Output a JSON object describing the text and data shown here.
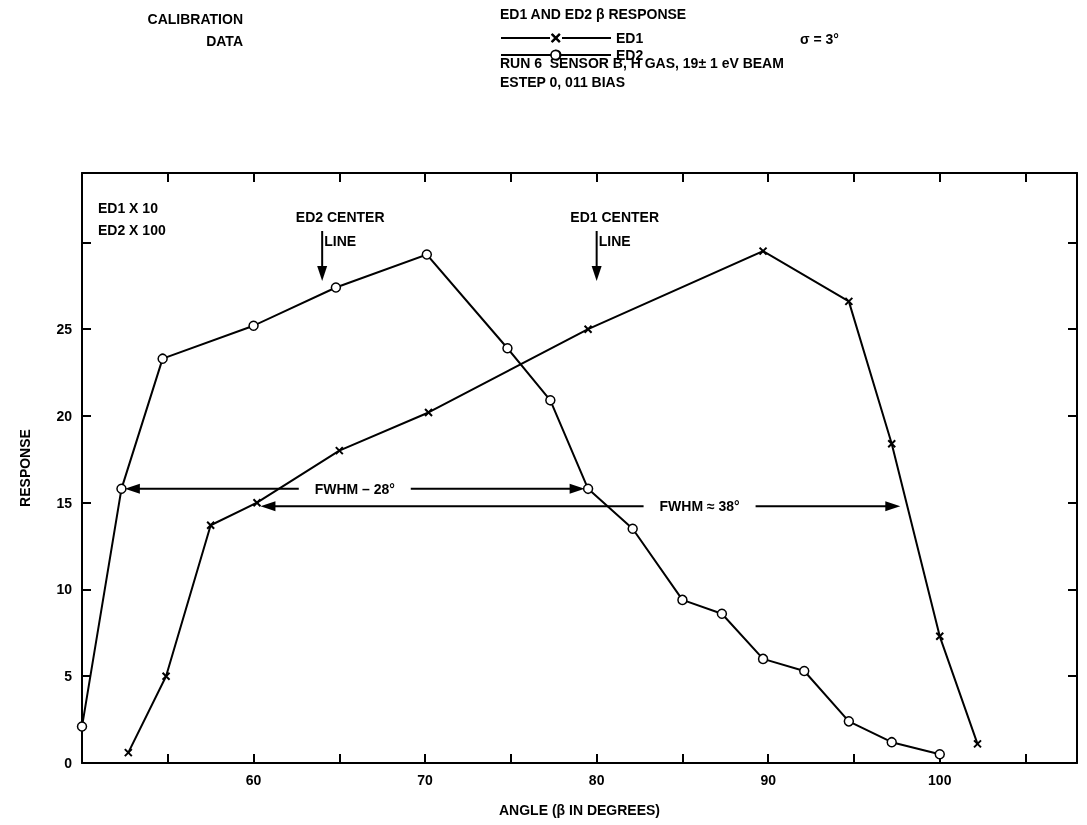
{
  "chart_data": {
    "type": "line",
    "title": "ED1 AND ED2 β RESPONSE",
    "subtitle": "RUN 6  SENSOR B, H GAS, 19± 1 eV BEAM\nESTEP 0, 011 BIAS",
    "xlabel": "ANGLE (β IN DEGREES)",
    "ylabel": "RESPONSE",
    "xlim": [
      50,
      108
    ],
    "xticks": [
      {
        "value": 55,
        "label": null
      },
      60,
      {
        "value": 65,
        "label": null
      },
      70,
      {
        "value": 75,
        "label": null
      },
      80,
      {
        "value": 85,
        "label": null
      },
      90,
      {
        "value": 95,
        "label": null
      },
      100,
      {
        "value": 105,
        "label": null
      }
    ],
    "ylim": [
      0,
      34
    ],
    "yticks": [
      0,
      5,
      10,
      15,
      20,
      25,
      {
        "value": 30,
        "label": null
      }
    ],
    "grid": false,
    "legend": "top",
    "line_style": "solid",
    "series": [
      {
        "name": "ED1",
        "color": "#000000",
        "marker": "cross",
        "x": [
          52.7,
          54.9,
          57.5,
          60.2,
          65.0,
          70.2,
          79.5,
          89.7,
          94.7,
          97.2,
          100,
          102.2
        ],
        "values": [
          0.6,
          5.0,
          13.7,
          15.0,
          18.0,
          20.2,
          25.0,
          29.5,
          26.6,
          18.4,
          7.3,
          1.1
        ]
      },
      {
        "name": "ED2",
        "color": "#000000",
        "marker": "circle",
        "x": [
          50,
          52.3,
          54.7,
          60,
          64.8,
          70.1,
          74.8,
          77.3,
          79.5,
          82.1,
          85.0,
          87.3,
          89.7,
          92.1,
          94.7,
          97.2,
          100
        ],
        "values": [
          2.1,
          15.8,
          23.3,
          25.2,
          27.4,
          29.3,
          23.9,
          20.9,
          15.8,
          13.5,
          9.4,
          8.6,
          6.0,
          5.3,
          2.4,
          1.2,
          0.5
        ]
      }
    ],
    "annotations": [
      "CALIBRATION\nDATA",
      "σ = 3°",
      "ED1 X 10\nED2 X 100",
      "ED2 CENTER\nLINE",
      "ED1 CENTER\nLINE",
      "FWHM – 28°",
      "FWHM ≈ 38°"
    ]
  }
}
